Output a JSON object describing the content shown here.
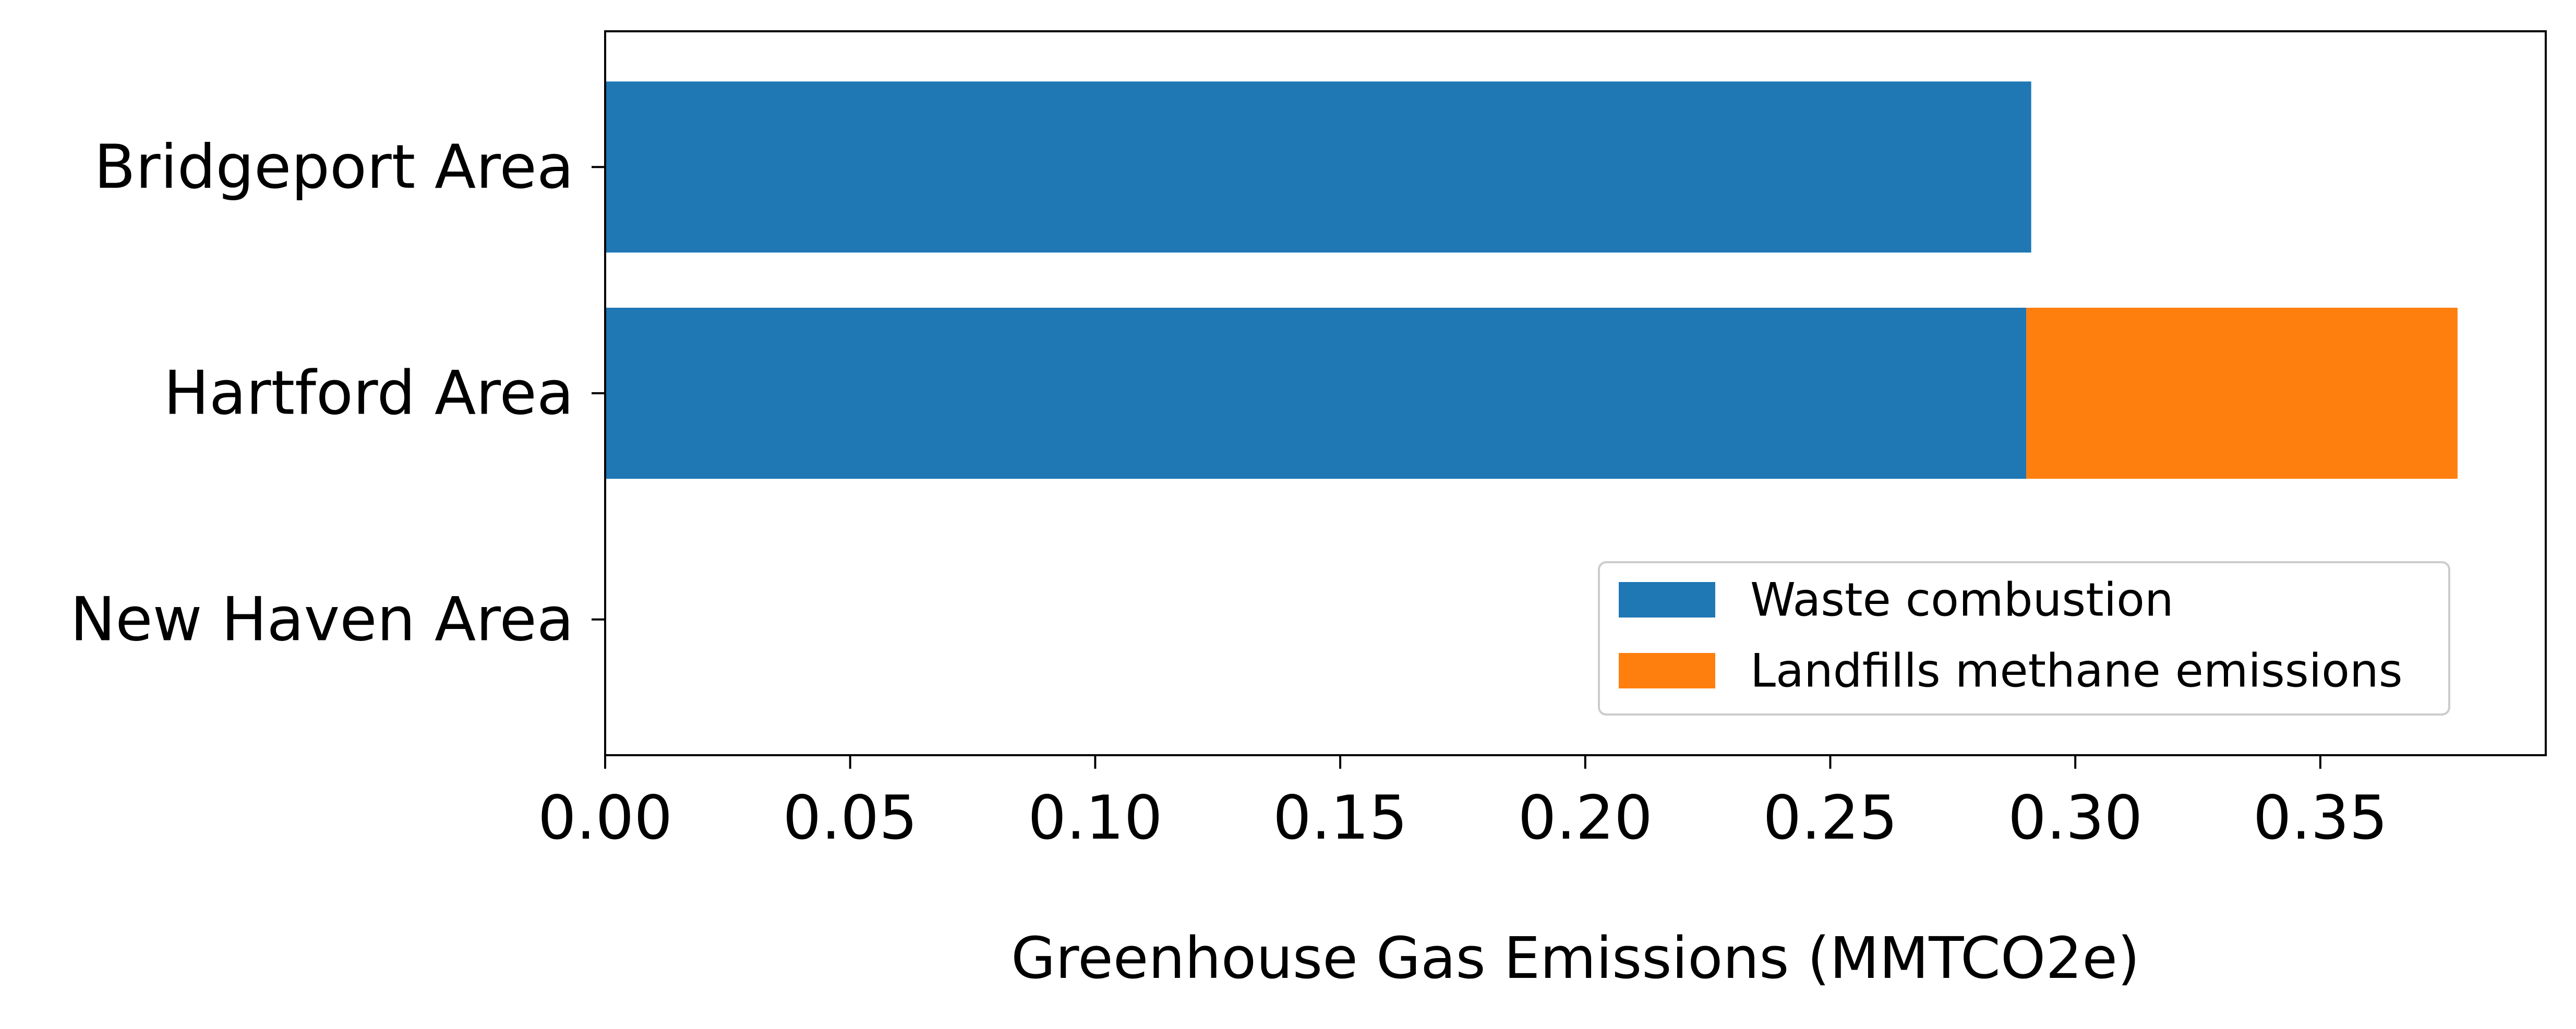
{
  "chart_data": {
    "type": "bar",
    "orientation": "horizontal",
    "stacked": true,
    "title": "",
    "xlabel": "Greenhouse Gas Emissions (MMTCO2e)",
    "ylabel": "",
    "categories": [
      "Bridgeport Area",
      "Hartford Area",
      "New Haven Area"
    ],
    "xlim": [
      0,
      0.396
    ],
    "xticks": [
      "0.00",
      "0.05",
      "0.10",
      "0.15",
      "0.20",
      "0.25",
      "0.30",
      "0.35"
    ],
    "xtick_values": [
      0,
      0.05,
      0.1,
      0.15,
      0.2,
      0.25,
      0.3,
      0.35
    ],
    "grid": false,
    "legend_position": "lower-right",
    "series": [
      {
        "name": "Waste combustion",
        "color": "#1f77b4",
        "values": [
          0.291,
          0.29,
          0.0
        ]
      },
      {
        "name": "Landfills methane emissions",
        "color": "#ff7f0e",
        "values": [
          0.0,
          0.088,
          0.0
        ]
      }
    ]
  }
}
